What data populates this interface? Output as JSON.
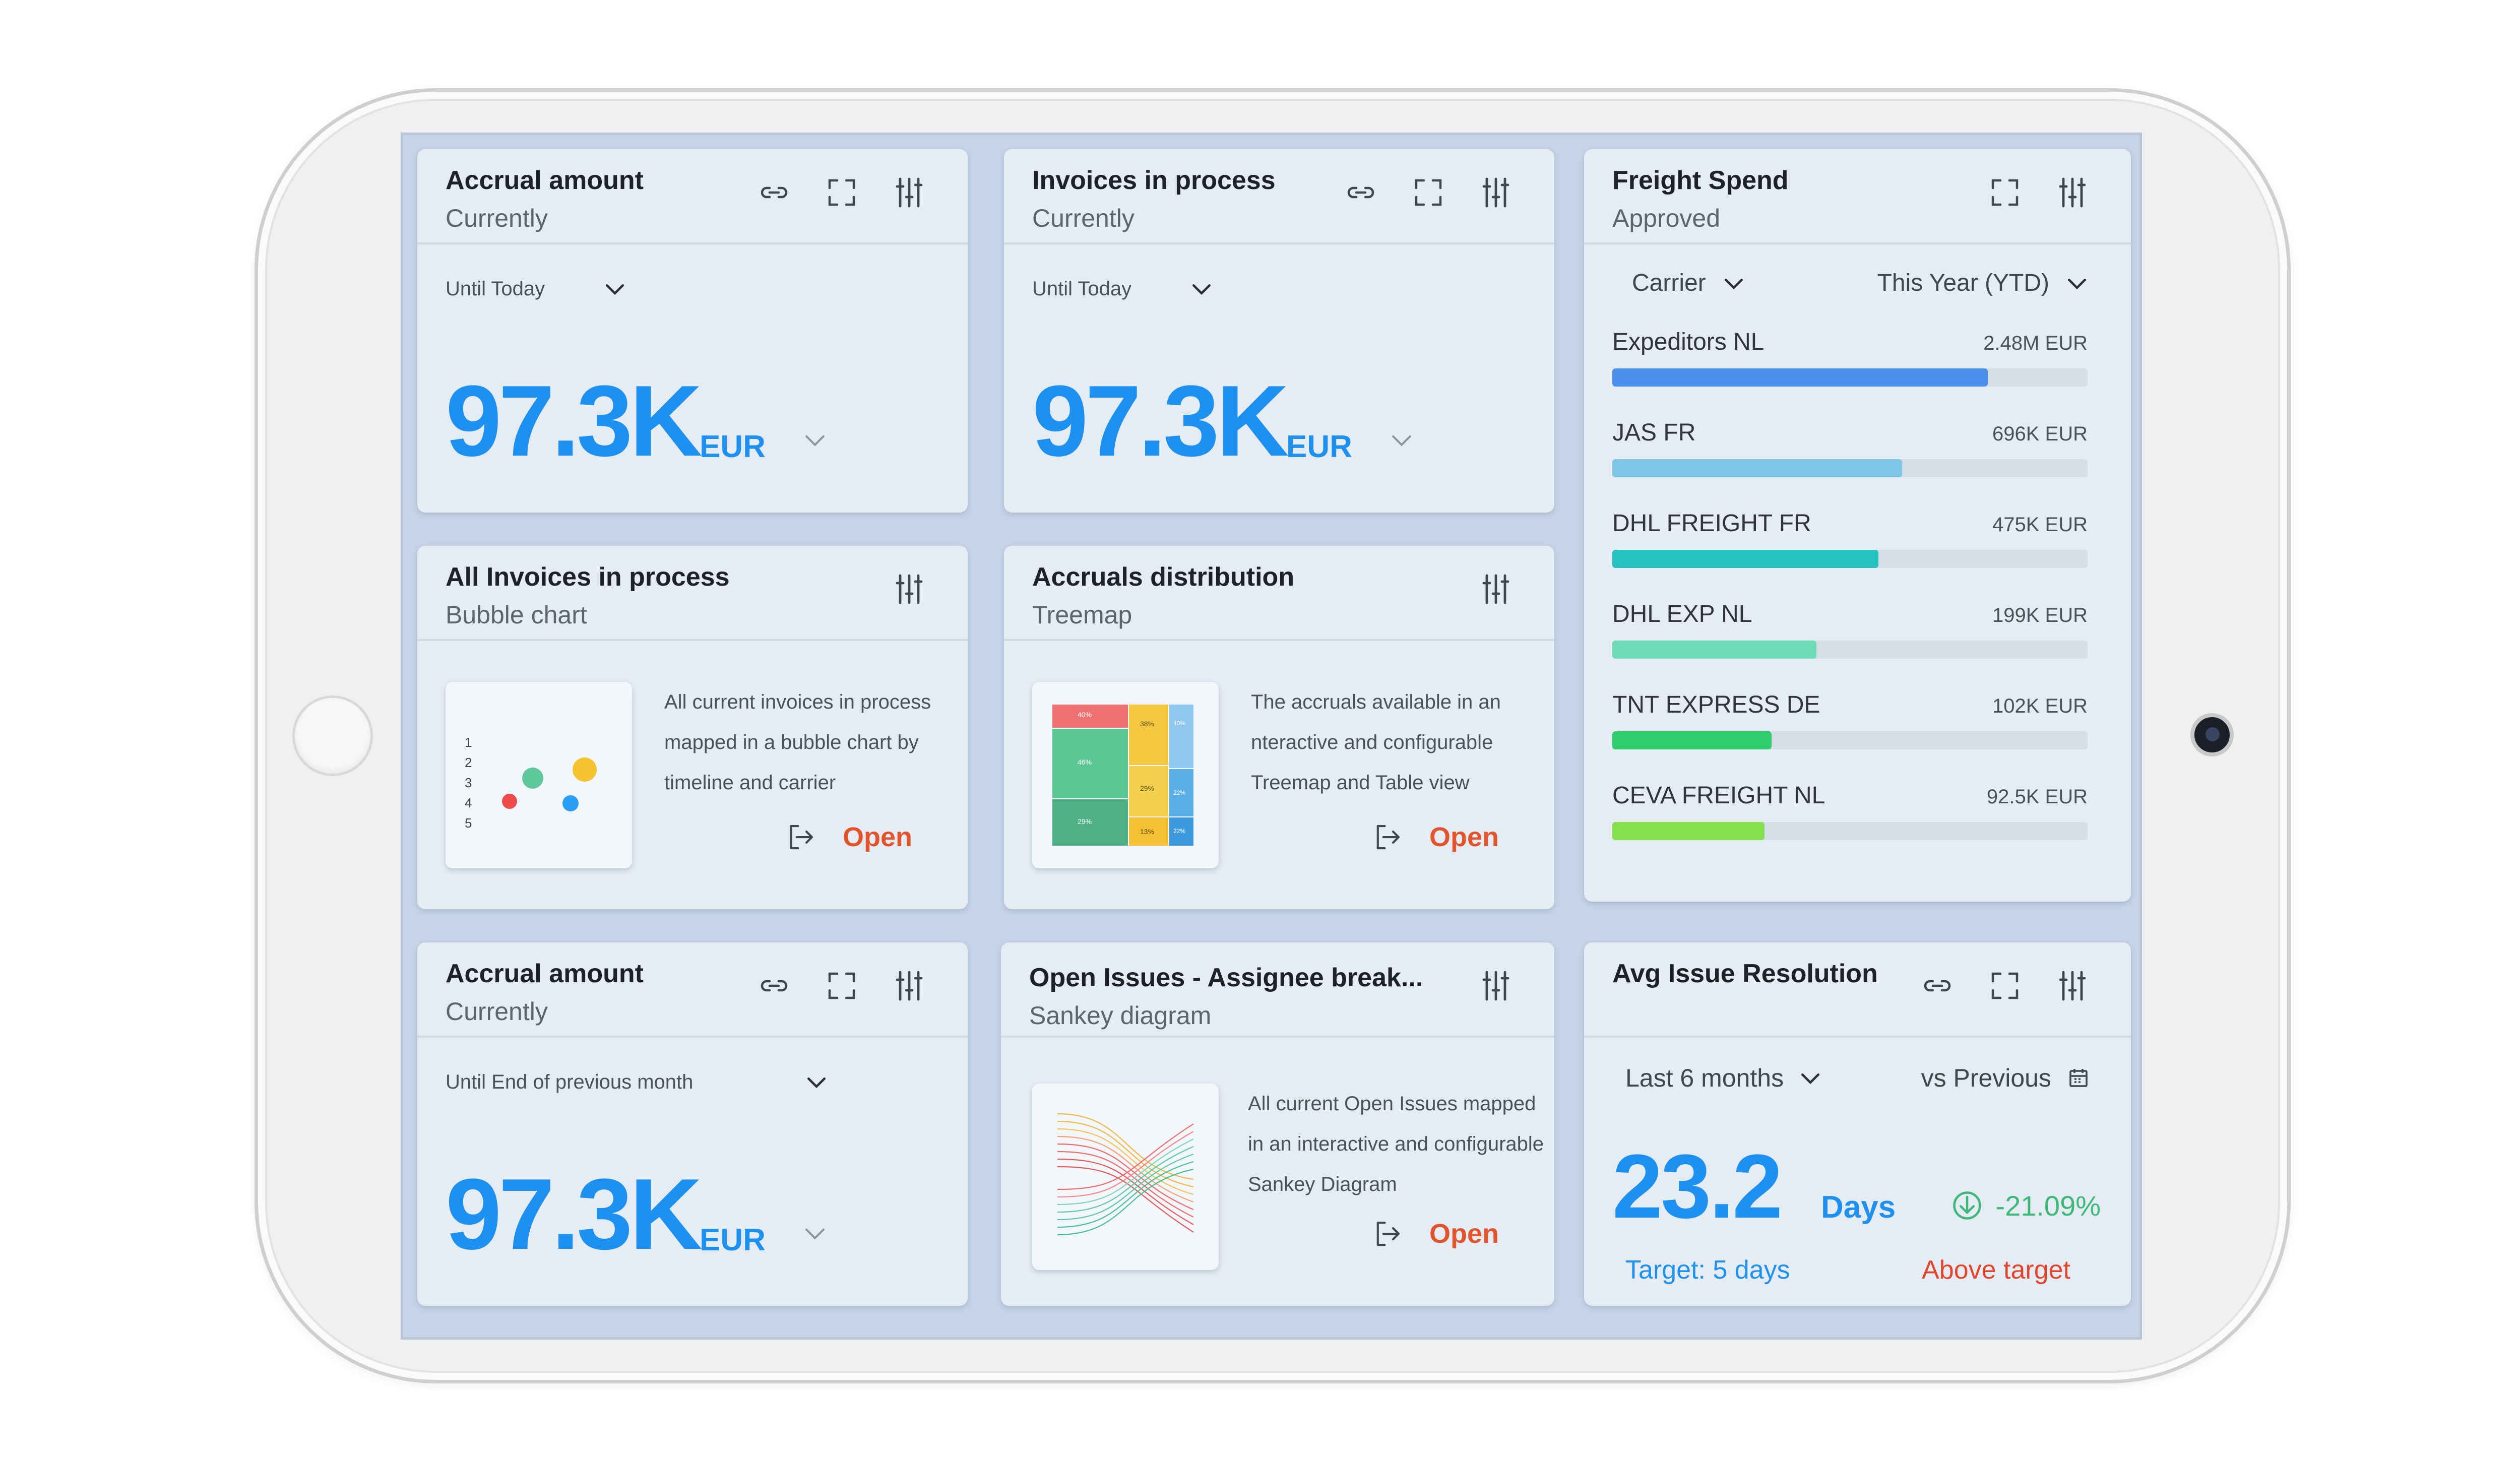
{
  "cards": {
    "accrual1": {
      "title": "Accrual amount",
      "subtitle": "Currently",
      "filter": "Until Today",
      "value": "97.3K",
      "currency": "EUR"
    },
    "invoices": {
      "title": "Invoices in process",
      "subtitle": "Currently",
      "filter": "Until Today",
      "value": "97.3K",
      "currency": "EUR"
    },
    "freight": {
      "title": "Freight Spend",
      "subtitle": "Approved",
      "filter_group": "Carrier",
      "filter_period": "This Year (YTD)",
      "bars": [
        {
          "name": "Expeditors NL",
          "value": "2.48M EUR",
          "fraction": 0.79,
          "color": "#4a90ef"
        },
        {
          "name": "JAS FR",
          "value": "696K EUR",
          "fraction": 0.61,
          "color": "#7cc6e8"
        },
        {
          "name": "DHL FREIGHT FR",
          "value": "475K EUR",
          "fraction": 0.56,
          "color": "#26c2c0"
        },
        {
          "name": "DHL EXP NL",
          "value": "199K EUR",
          "fraction": 0.43,
          "color": "#6ddbb6"
        },
        {
          "name": "TNT EXPRESS DE",
          "value": "102K EUR",
          "fraction": 0.335,
          "color": "#2fcf6e"
        },
        {
          "name": "CEVA FREIGHT NL",
          "value": "92.5K EUR",
          "fraction": 0.32,
          "color": "#84e04e"
        }
      ]
    },
    "bubble": {
      "title": "All Invoices in process",
      "subtitle": "Bubble chart",
      "description": "All current invoices in process mapped in a bubble chart by timeline and carrier",
      "open": "Open",
      "axis": [
        "1",
        "2",
        "3",
        "4",
        "5"
      ]
    },
    "treemap": {
      "title": "Accruals distribution",
      "subtitle": "Treemap",
      "description": "The accruals available in an nteractive and configurable Treemap and Table view",
      "open": "Open",
      "cells": [
        "40%",
        "46%",
        "29%",
        "38%",
        "29%",
        "13%",
        "40%",
        "22%",
        "22%"
      ]
    },
    "accrual2": {
      "title": "Accrual amount",
      "subtitle": "Currently",
      "filter": "Until End of previous month",
      "value": "97.3K",
      "currency": "EUR"
    },
    "sankey": {
      "title": "Open Issues - Assignee break...",
      "subtitle": "Sankey diagram",
      "description": "All current Open Issues mapped in an interactive and configurable Sankey Diagram",
      "open": "Open"
    },
    "avg": {
      "title": "Avg Issue Resolution",
      "period": "Last 6 months",
      "compare": "vs Previous",
      "value": "23.2",
      "unit": "Days",
      "change": "-21.09%",
      "target": "Target: 5 days",
      "status": "Above target"
    }
  },
  "colors": {
    "accent": "#1e90f0",
    "open": "#e2542b",
    "positive": "#3cb878",
    "negative": "#e2452b"
  }
}
